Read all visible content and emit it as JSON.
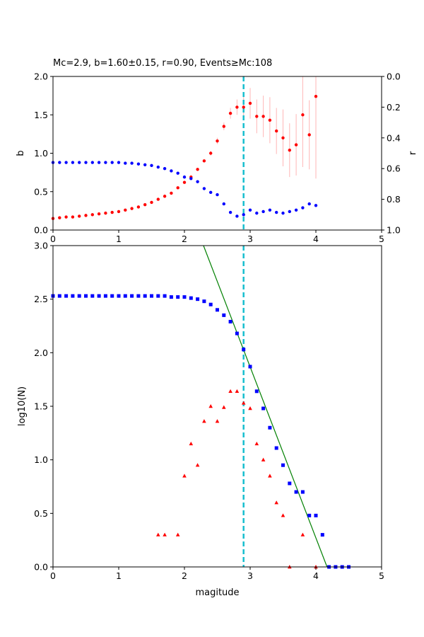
{
  "chart_data": [
    {
      "type": "scatter",
      "title": "Mc=2.9, b=1.60±0.15, r=0.90, Events≥Mc:108",
      "xlim": [
        0,
        5
      ],
      "ylim": [
        0,
        2.0
      ],
      "y2lim": [
        0,
        1.0
      ],
      "y2_inverted": true,
      "xlabel": "",
      "ylabel": "b",
      "y2label": "r",
      "x_ticks": [
        "0",
        "1",
        "2",
        "3",
        "4",
        "5"
      ],
      "y_ticks": [
        "0.0",
        "0.5",
        "1.0",
        "1.5",
        "2.0"
      ],
      "y2_ticks": [
        "0.0",
        "0.2",
        "0.4",
        "0.6",
        "0.8",
        "1.0"
      ],
      "mc_line": 2.9,
      "series": [
        {
          "axis": "left",
          "color": "#ff0000",
          "marker": "circle",
          "x": [
            0,
            0.1,
            0.2,
            0.3,
            0.4,
            0.5,
            0.6,
            0.7,
            0.8,
            0.9,
            1.0,
            1.1,
            1.2,
            1.3,
            1.4,
            1.5,
            1.6,
            1.7,
            1.8,
            1.9,
            2.0,
            2.1,
            2.2,
            2.3,
            2.4,
            2.5,
            2.6,
            2.7,
            2.8,
            2.9,
            3.0,
            3.1,
            3.2,
            3.3,
            3.4,
            3.5,
            3.6,
            3.7,
            3.8,
            3.9,
            4.0
          ],
          "y": [
            0.15,
            0.16,
            0.17,
            0.17,
            0.18,
            0.19,
            0.2,
            0.21,
            0.22,
            0.23,
            0.24,
            0.26,
            0.28,
            0.3,
            0.33,
            0.36,
            0.4,
            0.44,
            0.48,
            0.55,
            0.62,
            0.69,
            0.79,
            0.9,
            1.0,
            1.16,
            1.35,
            1.52,
            1.6,
            1.6,
            1.65,
            1.48,
            1.48,
            1.43,
            1.29,
            1.2,
            1.04,
            1.11,
            1.5,
            1.24,
            1.74
          ],
          "err": [
            0,
            0,
            0,
            0,
            0,
            0,
            0,
            0,
            0,
            0,
            0,
            0,
            0,
            0,
            0,
            0,
            0,
            0,
            0,
            0,
            0,
            0,
            0,
            0,
            0.03,
            0.04,
            0.05,
            0.07,
            0.1,
            0.15,
            0.2,
            0.22,
            0.27,
            0.3,
            0.3,
            0.37,
            0.35,
            0.4,
            0.68,
            0.45,
            1.07
          ]
        },
        {
          "axis": "right",
          "color": "#0000ff",
          "marker": "circle",
          "x": [
            0,
            0.1,
            0.2,
            0.3,
            0.4,
            0.5,
            0.6,
            0.7,
            0.8,
            0.9,
            1.0,
            1.1,
            1.2,
            1.3,
            1.4,
            1.5,
            1.6,
            1.7,
            1.8,
            1.9,
            2.0,
            2.1,
            2.2,
            2.3,
            2.4,
            2.5,
            2.6,
            2.7,
            2.8,
            2.9,
            3.0,
            3.1,
            3.2,
            3.3,
            3.4,
            3.5,
            3.6,
            3.7,
            3.8,
            3.9,
            4.0
          ],
          "y": [
            0.56,
            0.56,
            0.56,
            0.56,
            0.56,
            0.56,
            0.56,
            0.56,
            0.56,
            0.56,
            0.56,
            0.565,
            0.565,
            0.57,
            0.575,
            0.58,
            0.59,
            0.6,
            0.615,
            0.63,
            0.655,
            0.665,
            0.685,
            0.73,
            0.755,
            0.77,
            0.83,
            0.885,
            0.91,
            0.9,
            0.87,
            0.89,
            0.88,
            0.87,
            0.885,
            0.89,
            0.88,
            0.87,
            0.855,
            0.83,
            0.84
          ]
        }
      ]
    },
    {
      "type": "scatter",
      "xlim": [
        0,
        5
      ],
      "ylim": [
        0,
        3.0
      ],
      "xlabel": "magitude",
      "ylabel": "log10(N)",
      "x_ticks": [
        "0",
        "1",
        "2",
        "3",
        "4",
        "5"
      ],
      "y_ticks": [
        "0.0",
        "0.5",
        "1.0",
        "1.5",
        "2.0",
        "2.5",
        "3.0"
      ],
      "mc_line": 2.9,
      "fit_line": {
        "color": "#008000",
        "x": [
          2.29,
          4.17
        ],
        "y": [
          3.0,
          0.0
        ]
      },
      "series": [
        {
          "color": "#0000ff",
          "marker": "square",
          "x": [
            0,
            0.1,
            0.2,
            0.3,
            0.4,
            0.5,
            0.6,
            0.7,
            0.8,
            0.9,
            1.0,
            1.1,
            1.2,
            1.3,
            1.4,
            1.5,
            1.6,
            1.7,
            1.8,
            1.9,
            2.0,
            2.1,
            2.2,
            2.3,
            2.4,
            2.5,
            2.6,
            2.7,
            2.8,
            2.9,
            3.0,
            3.1,
            3.2,
            3.3,
            3.4,
            3.5,
            3.6,
            3.7,
            3.8,
            3.9,
            4.0,
            4.1,
            4.2,
            4.3,
            4.4,
            4.5
          ],
          "y": [
            2.53,
            2.53,
            2.53,
            2.53,
            2.53,
            2.53,
            2.53,
            2.53,
            2.53,
            2.53,
            2.53,
            2.53,
            2.53,
            2.53,
            2.53,
            2.53,
            2.53,
            2.53,
            2.52,
            2.52,
            2.52,
            2.51,
            2.5,
            2.48,
            2.45,
            2.4,
            2.35,
            2.29,
            2.18,
            2.03,
            1.87,
            1.64,
            1.48,
            1.3,
            1.11,
            0.95,
            0.78,
            0.7,
            0.7,
            0.48,
            0.48,
            0.3,
            0,
            0,
            0,
            0
          ]
        },
        {
          "color": "#ff0000",
          "marker": "triangle",
          "x": [
            1.6,
            1.7,
            1.9,
            2.0,
            2.1,
            2.2,
            2.3,
            2.4,
            2.5,
            2.6,
            2.7,
            2.8,
            2.9,
            3.0,
            3.1,
            3.2,
            3.3,
            3.4,
            3.5,
            3.6,
            3.8,
            4.0
          ],
          "y": [
            0.3,
            0.3,
            0.3,
            0.85,
            1.15,
            0.95,
            1.36,
            1.5,
            1.36,
            1.49,
            1.64,
            1.64,
            1.53,
            1.48,
            1.15,
            1.0,
            0.85,
            0.6,
            0.48,
            0.0,
            0.3,
            0.0
          ]
        }
      ]
    }
  ]
}
